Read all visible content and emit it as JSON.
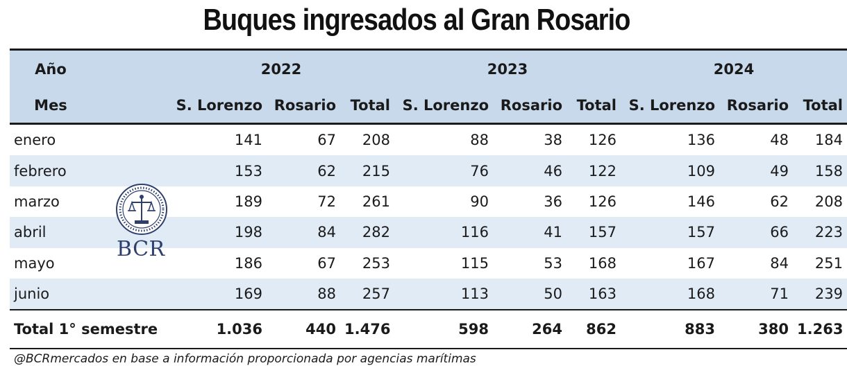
{
  "title": "Buques ingresados al Gran Rosario",
  "header": {
    "row1_label": "Año",
    "row2_label": "Mes",
    "years": [
      "2022",
      "2023",
      "2024"
    ],
    "subcolumns": [
      "S. Lorenzo",
      "Rosario",
      "Total"
    ]
  },
  "rows": [
    {
      "mes": "enero",
      "v": [
        "141",
        "67",
        "208",
        "88",
        "38",
        "126",
        "136",
        "48",
        "184"
      ]
    },
    {
      "mes": "febrero",
      "v": [
        "153",
        "62",
        "215",
        "76",
        "46",
        "122",
        "109",
        "49",
        "158"
      ]
    },
    {
      "mes": "marzo",
      "v": [
        "189",
        "72",
        "261",
        "90",
        "36",
        "126",
        "146",
        "62",
        "208"
      ]
    },
    {
      "mes": "abril",
      "v": [
        "198",
        "84",
        "282",
        "116",
        "41",
        "157",
        "157",
        "66",
        "223"
      ]
    },
    {
      "mes": "mayo",
      "v": [
        "186",
        "67",
        "253",
        "115",
        "53",
        "168",
        "167",
        "84",
        "251"
      ]
    },
    {
      "mes": "junio",
      "v": [
        "169",
        "88",
        "257",
        "113",
        "50",
        "163",
        "168",
        "71",
        "239"
      ]
    }
  ],
  "total": {
    "mes": "Total 1° semestre",
    "v": [
      "1.036",
      "440",
      "1.476",
      "598",
      "264",
      "862",
      "883",
      "380",
      "1.263"
    ]
  },
  "logo": {
    "text": "BCR",
    "seal_color": "#2e3f6e"
  },
  "source": "@BCRmercados en base a información proporcionada por agencias marítimas",
  "colors": {
    "header_bg": "#c7d9ea",
    "alt_row_bg": "#e1ebf6"
  }
}
